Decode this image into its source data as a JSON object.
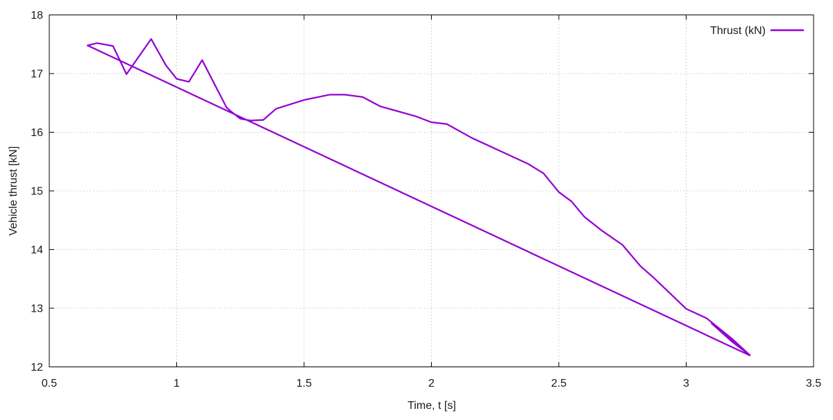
{
  "colors": {
    "line": "#9400D3",
    "grid": "#c8c8c8",
    "axis": "#000000",
    "text": "#1a1a1a",
    "background": "#ffffff"
  },
  "chart_data": {
    "type": "line",
    "title": "",
    "xlabel": "Time, t [s]",
    "ylabel": "Vehicle thrust [kN]",
    "xlim": [
      0.5,
      3.5
    ],
    "ylim": [
      12,
      18
    ],
    "grid": true,
    "legend_position": "top-right-inside",
    "x_ticks": {
      "values": [
        0.5,
        1,
        1.5,
        2,
        2.5,
        3,
        3.5
      ],
      "labels": [
        "0.5",
        "1",
        "1.5",
        "2",
        "2.5",
        "3",
        "3.5"
      ]
    },
    "y_ticks": {
      "values": [
        12,
        13,
        14,
        15,
        16,
        17,
        18
      ],
      "labels": [
        "12",
        "13",
        "14",
        "15",
        "16",
        "17",
        "18"
      ]
    },
    "series": [
      {
        "name": "Thrust (kN)",
        "color": "#9400D3",
        "shape": "closed loop: oscillating forward branch, thin lens fold near end point, straight return branch to start",
        "points": [
          [
            0.65,
            17.48
          ],
          [
            0.688,
            17.52
          ],
          [
            0.75,
            17.47
          ],
          [
            0.803,
            16.99
          ],
          [
            0.9,
            17.59
          ],
          [
            0.958,
            17.14
          ],
          [
            1.0,
            16.91
          ],
          [
            1.048,
            16.86
          ],
          [
            1.1,
            17.23
          ],
          [
            1.196,
            16.42
          ],
          [
            1.212,
            16.36
          ],
          [
            1.25,
            16.23
          ],
          [
            1.29,
            16.2
          ],
          [
            1.34,
            16.21
          ],
          [
            1.39,
            16.4
          ],
          [
            1.5,
            16.55
          ],
          [
            1.6,
            16.64
          ],
          [
            1.66,
            16.64
          ],
          [
            1.73,
            16.6
          ],
          [
            1.8,
            16.44
          ],
          [
            1.85,
            16.38
          ],
          [
            1.94,
            16.27
          ],
          [
            2.0,
            16.17
          ],
          [
            2.06,
            16.14
          ],
          [
            2.16,
            15.9
          ],
          [
            2.27,
            15.68
          ],
          [
            2.38,
            15.46
          ],
          [
            2.44,
            15.3
          ],
          [
            2.5,
            14.98
          ],
          [
            2.55,
            14.82
          ],
          [
            2.6,
            14.56
          ],
          [
            2.67,
            14.32
          ],
          [
            2.75,
            14.08
          ],
          [
            2.82,
            13.72
          ],
          [
            2.87,
            13.53
          ],
          [
            3.0,
            12.99
          ],
          [
            3.08,
            12.83
          ],
          [
            3.18,
            12.48
          ],
          [
            3.25,
            12.2
          ],
          [
            3.18,
            12.43
          ],
          [
            3.1,
            12.74
          ],
          [
            3.25,
            12.195
          ],
          [
            0.65,
            17.48
          ]
        ]
      }
    ]
  }
}
